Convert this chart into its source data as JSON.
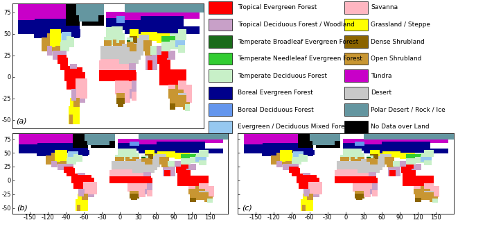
{
  "legend_left": [
    {
      "label": "Tropical Evergreen Forest",
      "color": "#FF0000"
    },
    {
      "label": "Tropical Deciduous Forest / Woodland",
      "color": "#C8A0C8"
    },
    {
      "label": "Temperate Broadleaf Evergreen Forest",
      "color": "#1A6B1A"
    },
    {
      "label": "Temperate Needleleaf Evergreen Forest",
      "color": "#32CD32"
    },
    {
      "label": "Temperate Deciduous Forest",
      "color": "#C8F0C8"
    },
    {
      "label": "Boreal Evergreen Forest",
      "color": "#00008B"
    },
    {
      "label": "Boreal Deciduous Forest",
      "color": "#6496ED"
    },
    {
      "label": "Evergreen / Deciduous Mixed Forest",
      "color": "#96C8F0"
    }
  ],
  "legend_right": [
    {
      "label": "Savanna",
      "color": "#FFB6C1"
    },
    {
      "label": "Grassland / Steppe",
      "color": "#FFFF00"
    },
    {
      "label": "Dense Shrubland",
      "color": "#8B6400"
    },
    {
      "label": "Open Shrubland",
      "color": "#C89632"
    },
    {
      "label": "Tundra",
      "color": "#C800C8"
    },
    {
      "label": "Desert",
      "color": "#C8C8C8"
    },
    {
      "label": "Polar Desert / Rock / Ice",
      "color": "#6496A0"
    },
    {
      "label": "No Data over Land",
      "color": "#000000"
    }
  ],
  "panel_labels": [
    "(a)",
    "(b)",
    "(c)"
  ],
  "top_yticks": [
    75,
    50,
    25,
    0,
    -25,
    -50
  ],
  "bottom_yticks": [
    75,
    50,
    25,
    0,
    -25,
    -50
  ],
  "xticks": [
    -150,
    -120,
    -90,
    -60,
    -30,
    0,
    30,
    60,
    90,
    120,
    150
  ],
  "bg_color": "#FFFFFF",
  "ocean_color": "#FFFFFF",
  "tick_fontsize": 6,
  "legend_fontsize": 6.5,
  "panel_label_fontsize": 8
}
